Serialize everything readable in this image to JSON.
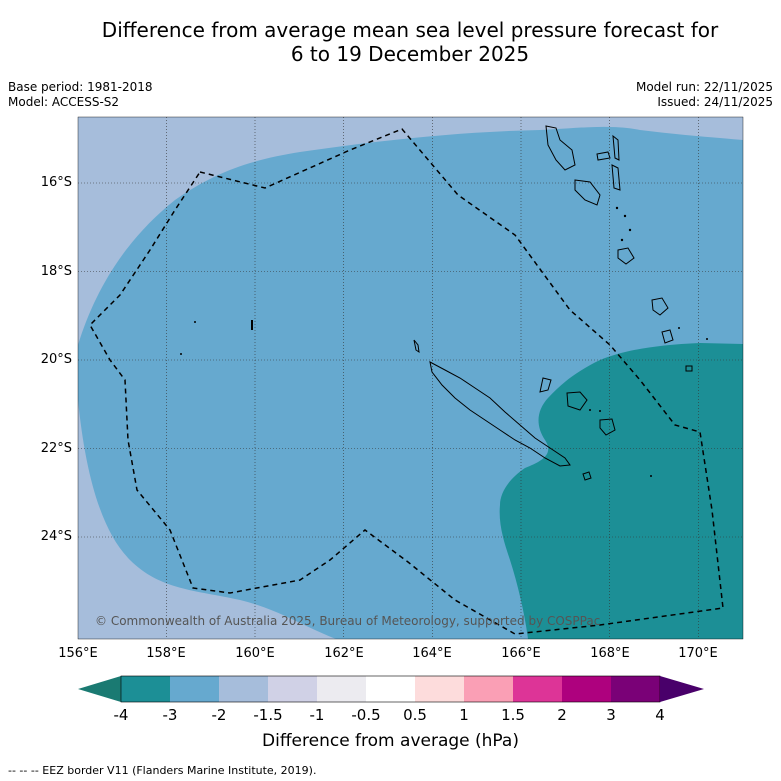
{
  "title_line1": "Difference from average mean sea level pressure forecast for",
  "title_line2": "6 to 19 December 2025",
  "base_period": "Base period: 1981-2018",
  "model": "Model: ACCESS-S2",
  "model_run": "Model run: 22/11/2025",
  "issued": "Issued: 24/11/2025",
  "copyright": "© Commonwealth of Australia 2025, Bureau of Meteorology, supported by COSPPac",
  "footer": "--  --  -- EEZ border V11 (Flanders Marine Institute, 2019).",
  "lat_labels": [
    "16°S",
    "18°S",
    "20°S",
    "22°S",
    "24°S"
  ],
  "lon_labels": [
    "156°E",
    "158°E",
    "160°E",
    "162°E",
    "164°E",
    "166°E",
    "168°E",
    "170°E"
  ],
  "colorbar": {
    "title": "Difference from average (hPa)",
    "tick_labels": [
      "-4",
      "-3",
      "-2",
      "-1.5",
      "-1",
      "-0.5",
      "0.5",
      "1",
      "1.5",
      "2",
      "3",
      "4"
    ],
    "colors": [
      "#1a7a72",
      "#1c8f96",
      "#66a9cf",
      "#a6bddb",
      "#d0d1e6",
      "#ecebf0",
      "#ffffff",
      "#fddcdc",
      "#fa9fb5",
      "#dd3497",
      "#ae017e",
      "#7a0177",
      "#49006a"
    ]
  },
  "colors": {
    "light_blue": "#a6bddb",
    "mid_blue": "#66a9cf",
    "teal": "#1c8f96"
  }
}
